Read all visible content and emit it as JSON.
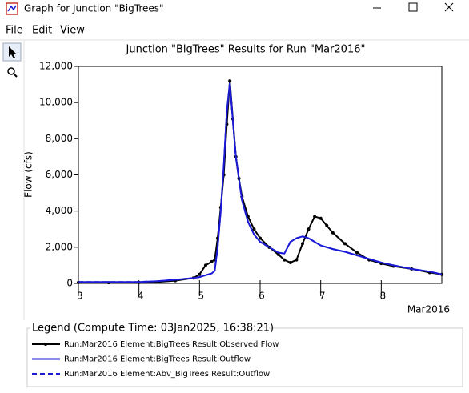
{
  "window": {
    "title": "Graph for Junction \"BigTrees\"",
    "menu": [
      "File",
      "Edit",
      "View"
    ]
  },
  "chart_data": {
    "type": "line",
    "title": "Junction \"BigTrees\" Results for Run \"Mar2016\"",
    "y_label": "Flow (cfs)",
    "x_label": "Mar2016",
    "x": [
      3,
      3.5,
      4,
      4.3,
      4.6,
      4.9,
      5.0,
      5.1,
      5.2,
      5.25,
      5.3,
      5.35,
      5.4,
      5.45,
      5.5,
      5.55,
      5.6,
      5.65,
      5.7,
      5.8,
      5.9,
      6.0,
      6.15,
      6.3,
      6.4,
      6.5,
      6.6,
      6.7,
      6.8,
      6.9,
      7.0,
      7.1,
      7.2,
      7.4,
      7.6,
      7.8,
      8.0,
      8.2,
      8.5,
      8.8,
      9.0
    ],
    "xlim": [
      3,
      9
    ],
    "xticks": [
      3,
      4,
      5,
      6,
      7,
      8
    ],
    "ylim": [
      0,
      12000
    ],
    "yticks": [
      0,
      {
        "value": 2000,
        "label": "2,000"
      },
      {
        "value": 4000,
        "label": "4,000"
      },
      {
        "value": 6000,
        "label": "6,000"
      },
      {
        "value": 8000,
        "label": "8,000"
      },
      {
        "value": 10000,
        "label": "10,000"
      },
      {
        "value": 12000,
        "label": "12,000"
      }
    ],
    "legend_title": "Legend (Compute Time: 03Jan2025, 16:38:21)",
    "series": [
      {
        "name": "Run:Mar2016 Element:BigTrees Result:Observed Flow",
        "color": "#000000",
        "marker": true,
        "values": [
          50,
          40,
          50,
          80,
          150,
          300,
          500,
          1000,
          1200,
          1300,
          2500,
          4200,
          6000,
          8800,
          11200,
          9100,
          7000,
          5800,
          4800,
          3700,
          3000,
          2500,
          2000,
          1600,
          1300,
          1150,
          1300,
          2200,
          3000,
          3700,
          3600,
          3200,
          2800,
          2200,
          1700,
          1300,
          1100,
          950,
          800,
          600,
          500
        ]
      },
      {
        "name": "Run:Mar2016 Element:BigTrees Result:Outflow",
        "color": "#1a1ad6",
        "values": [
          80,
          80,
          80,
          120,
          200,
          300,
          350,
          450,
          550,
          700,
          2000,
          4000,
          6500,
          9500,
          11100,
          9000,
          7000,
          5800,
          4600,
          3400,
          2700,
          2300,
          2000,
          1700,
          1650,
          2300,
          2500,
          2600,
          2500,
          2300,
          2100,
          2000,
          1900,
          1750,
          1550,
          1350,
          1150,
          1000,
          800,
          650,
          500
        ]
      },
      {
        "name": "Run:Mar2016 Element:Abv_BigTrees Result:Outflow",
        "color": "#1a1ad6",
        "dash": true,
        "values": [
          80,
          80,
          80,
          120,
          200,
          300,
          350,
          450,
          550,
          700,
          2000,
          4000,
          6500,
          9500,
          11100,
          9000,
          7000,
          5800,
          4600,
          3400,
          2700,
          2300,
          2000,
          1700,
          1650,
          2300,
          2500,
          2600,
          2500,
          2300,
          2100,
          2000,
          1900,
          1750,
          1550,
          1350,
          1150,
          1000,
          800,
          650,
          500
        ]
      }
    ]
  }
}
